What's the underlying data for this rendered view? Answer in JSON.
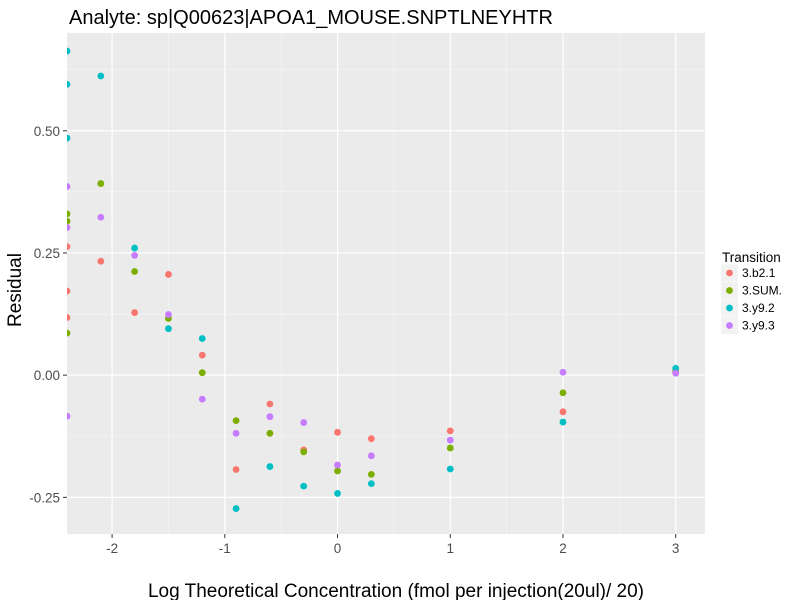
{
  "chart_data": {
    "type": "scatter",
    "title": "Analyte: sp|Q00623|APOA1_MOUSE.SNPTLNEYHTR",
    "xlabel": "Log Theoretical Concentration (fmol per injection(20ul)/ 20)",
    "ylabel": "Residual",
    "xlim": [
      -2.4,
      3.26
    ],
    "ylim": [
      -0.325,
      0.7
    ],
    "x_ticks": [
      -2,
      -1,
      0,
      1,
      2,
      3
    ],
    "x_tick_labels": [
      "-2",
      "-1",
      "0",
      "1",
      "2",
      "3"
    ],
    "y_ticks": [
      -0.25,
      0.0,
      0.25,
      0.5
    ],
    "y_tick_labels": [
      "-0.25",
      "0.00",
      "0.25",
      "0.50"
    ],
    "grid": true,
    "legend": {
      "title": "Transition",
      "placement": "right"
    },
    "series": [
      {
        "name": "3.b2.1",
        "color": "#F8766D",
        "points": [
          [
            -2.4,
            0.263
          ],
          [
            -2.4,
            0.172
          ],
          [
            -2.4,
            0.118
          ],
          [
            -2.1,
            0.233
          ],
          [
            -1.8,
            0.128
          ],
          [
            -1.5,
            0.206
          ],
          [
            -1.2,
            0.041
          ],
          [
            -0.9,
            -0.193
          ],
          [
            -0.6,
            -0.059
          ],
          [
            -0.3,
            -0.153
          ],
          [
            0,
            -0.117
          ],
          [
            0.3,
            -0.13
          ],
          [
            1,
            -0.114
          ],
          [
            2,
            -0.075
          ],
          [
            3,
            0.008
          ]
        ]
      },
      {
        "name": "3.SUM.",
        "color": "#7CAE00",
        "points": [
          [
            -2.4,
            0.33
          ],
          [
            -2.4,
            0.315
          ],
          [
            -2.4,
            0.086
          ],
          [
            -2.1,
            0.392
          ],
          [
            -1.8,
            0.212
          ],
          [
            -1.5,
            0.116
          ],
          [
            -1.2,
            0.005
          ],
          [
            -0.9,
            -0.093
          ],
          [
            -0.6,
            -0.119
          ],
          [
            -0.3,
            -0.157
          ],
          [
            0,
            -0.196
          ],
          [
            0.3,
            -0.203
          ],
          [
            1,
            -0.149
          ],
          [
            2,
            -0.036
          ],
          [
            3,
            0.007
          ]
        ]
      },
      {
        "name": "3.y9.2",
        "color": "#00BFC4",
        "points": [
          [
            -2.4,
            0.663
          ],
          [
            -2.4,
            0.595
          ],
          [
            -2.4,
            0.485
          ],
          [
            -2.1,
            0.612
          ],
          [
            -1.8,
            0.26
          ],
          [
            -1.5,
            0.095
          ],
          [
            -1.2,
            0.075
          ],
          [
            -0.9,
            -0.273
          ],
          [
            -0.6,
            -0.187
          ],
          [
            -0.3,
            -0.227
          ],
          [
            0,
            -0.242
          ],
          [
            0.3,
            -0.222
          ],
          [
            1,
            -0.192
          ],
          [
            2,
            -0.096
          ],
          [
            3,
            0.014
          ]
        ]
      },
      {
        "name": "3.y9.3",
        "color": "#C77CFF",
        "points": [
          [
            -2.4,
            0.386
          ],
          [
            -2.4,
            0.302
          ],
          [
            -2.4,
            -0.084
          ],
          [
            -2.1,
            0.323
          ],
          [
            -1.8,
            0.245
          ],
          [
            -1.5,
            0.124
          ],
          [
            -1.2,
            -0.049
          ],
          [
            -0.9,
            -0.119
          ],
          [
            -0.6,
            -0.085
          ],
          [
            -0.3,
            -0.097
          ],
          [
            0,
            -0.184
          ],
          [
            0.3,
            -0.165
          ],
          [
            1,
            -0.133
          ],
          [
            2,
            0.006
          ],
          [
            3,
            0.004
          ]
        ]
      }
    ]
  }
}
